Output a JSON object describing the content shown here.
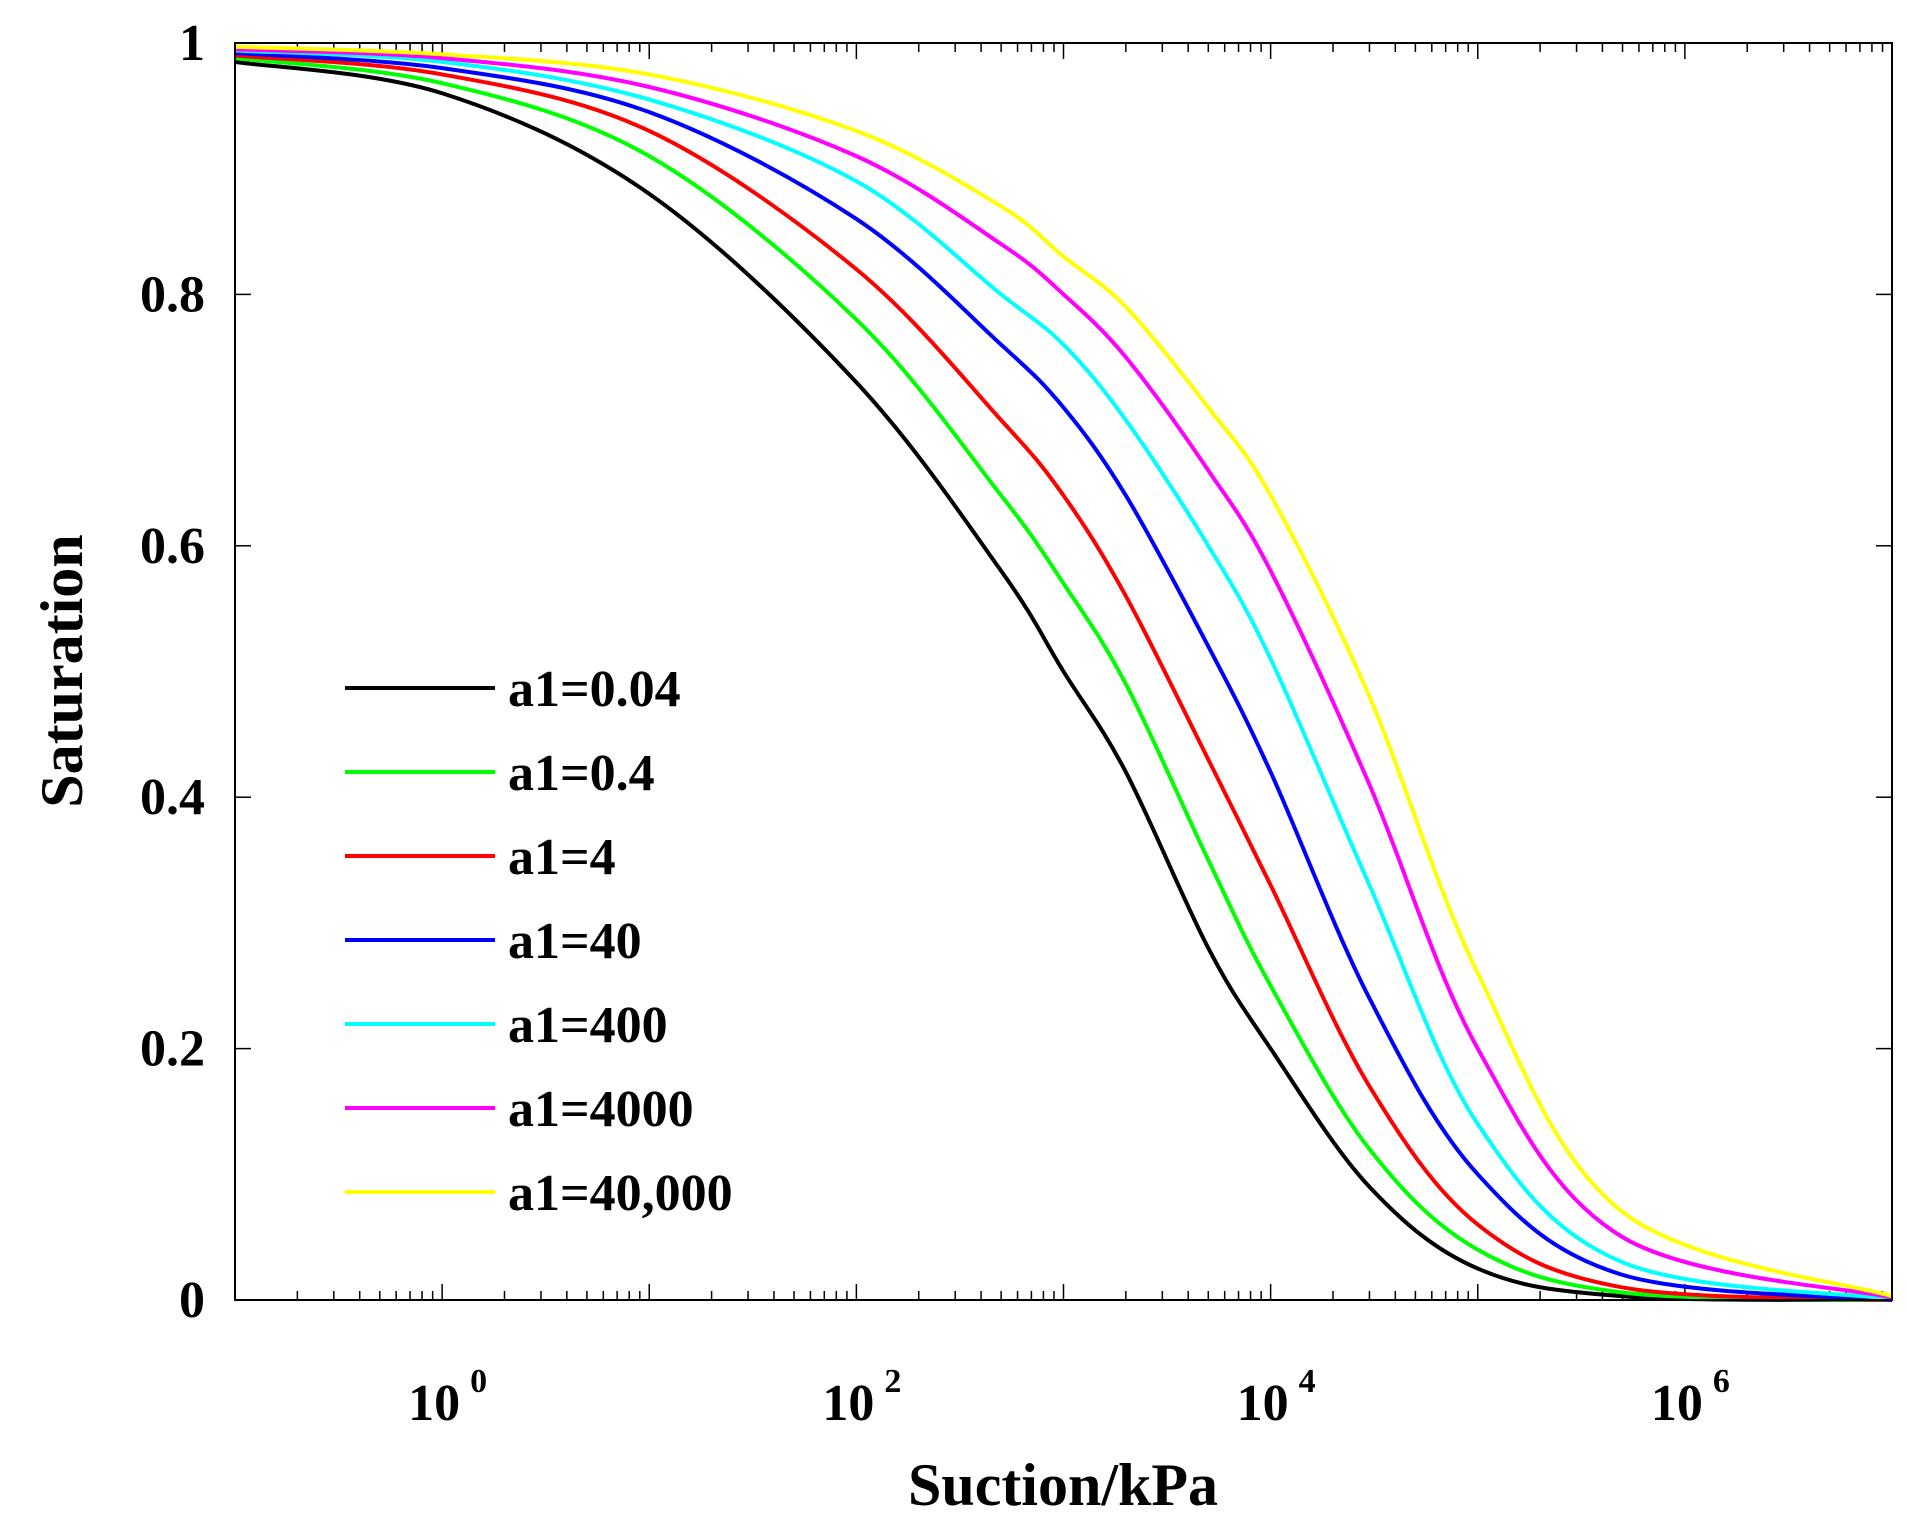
{
  "chart_data": {
    "type": "line",
    "title": "",
    "xlabel": "Suction/kPa",
    "ylabel": "Saturation",
    "xscale": "log",
    "xlim": [
      0.1,
      10000000
    ],
    "ylim": [
      0,
      1
    ],
    "x_ticks": [
      {
        "value": 1,
        "base": "10",
        "exp": "0"
      },
      {
        "value": 100,
        "base": "10",
        "exp": "2"
      },
      {
        "value": 10000,
        "base": "10",
        "exp": "4"
      },
      {
        "value": 1000000,
        "base": "10",
        "exp": "6"
      }
    ],
    "y_ticks": [
      {
        "value": 0,
        "label": "0"
      },
      {
        "value": 0.2,
        "label": "0.2"
      },
      {
        "value": 0.4,
        "label": "0.4"
      },
      {
        "value": 0.6,
        "label": "0.6"
      },
      {
        "value": 0.8,
        "label": "0.8"
      },
      {
        "value": 1,
        "label": "1"
      }
    ],
    "legend_position": "left-center",
    "grid": false,
    "series": [
      {
        "name": "a1=0.04",
        "color": "#000000",
        "x": [
          0.1,
          1,
          10,
          100,
          500,
          1000,
          2000,
          5000,
          10000,
          30000,
          100000,
          500000,
          10000000
        ],
        "y": [
          0.985,
          0.96,
          0.88,
          0.73,
          0.58,
          0.5,
          0.42,
          0.28,
          0.2,
          0.09,
          0.025,
          0.003,
          0.0
        ]
      },
      {
        "name": "a1=0.4",
        "color": "#00ff00",
        "x": [
          0.1,
          1,
          10,
          100,
          500,
          1000,
          2000,
          5000,
          10000,
          30000,
          100000,
          500000,
          10000000
        ],
        "y": [
          0.988,
          0.968,
          0.91,
          0.78,
          0.64,
          0.57,
          0.49,
          0.35,
          0.25,
          0.12,
          0.04,
          0.006,
          0.0
        ]
      },
      {
        "name": "a1=4",
        "color": "#ff0000",
        "x": [
          0.1,
          1,
          10,
          100,
          500,
          1000,
          2000,
          5000,
          10000,
          30000,
          100000,
          500000,
          10000000
        ],
        "y": [
          0.99,
          0.975,
          0.93,
          0.82,
          0.7,
          0.64,
          0.56,
          0.43,
          0.33,
          0.17,
          0.06,
          0.01,
          0.0
        ]
      },
      {
        "name": "a1=40",
        "color": "#0000ff",
        "x": [
          0.1,
          1,
          10,
          100,
          500,
          1000,
          2000,
          5000,
          10000,
          30000,
          100000,
          500000,
          10000000
        ],
        "y": [
          0.992,
          0.98,
          0.945,
          0.86,
          0.76,
          0.71,
          0.64,
          0.52,
          0.42,
          0.24,
          0.1,
          0.02,
          0.0
        ]
      },
      {
        "name": "a1=400",
        "color": "#00ffff",
        "x": [
          0.1,
          1,
          10,
          100,
          500,
          1000,
          2000,
          5000,
          10000,
          30000,
          100000,
          500000,
          10000000
        ],
        "y": [
          0.994,
          0.985,
          0.955,
          0.89,
          0.8,
          0.76,
          0.7,
          0.6,
          0.51,
          0.33,
          0.14,
          0.03,
          0.001
        ]
      },
      {
        "name": "a1=4000",
        "color": "#ff00ff",
        "x": [
          0.1,
          1,
          10,
          100,
          500,
          1000,
          2000,
          5000,
          10000,
          30000,
          100000,
          500000,
          10000000
        ],
        "y": [
          0.995,
          0.988,
          0.965,
          0.91,
          0.84,
          0.8,
          0.75,
          0.66,
          0.58,
          0.41,
          0.2,
          0.05,
          0.002
        ]
      },
      {
        "name": "a1=40,000",
        "color": "#ffff00",
        "x": [
          0.1,
          1,
          10,
          100,
          500,
          1000,
          2000,
          5000,
          10000,
          30000,
          100000,
          500000,
          10000000
        ],
        "y": [
          0.997,
          0.991,
          0.975,
          0.93,
          0.87,
          0.83,
          0.79,
          0.71,
          0.64,
          0.48,
          0.26,
          0.07,
          0.003
        ]
      }
    ]
  }
}
